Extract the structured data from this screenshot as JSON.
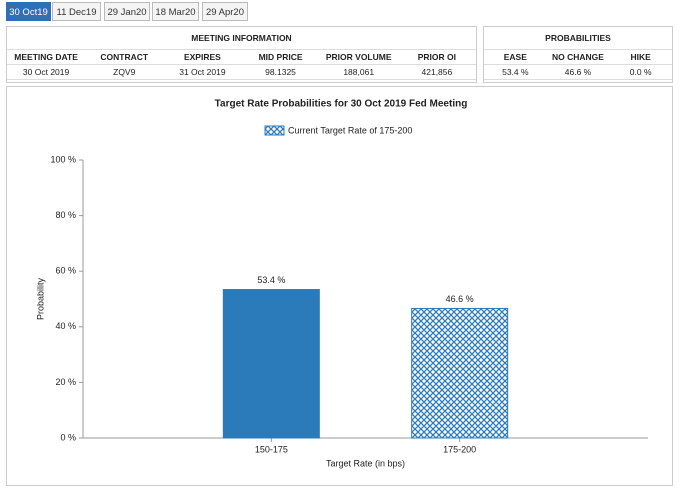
{
  "tabs": [
    "30 Oct19",
    "11 Dec19",
    "29 Jan20",
    "18 Mar20",
    "29 Apr20"
  ],
  "meeting_info": {
    "title": "MEETING INFORMATION",
    "headers": [
      "MEETING DATE",
      "CONTRACT",
      "EXPIRES",
      "MID PRICE",
      "PRIOR VOLUME",
      "PRIOR OI"
    ],
    "row": [
      "30 Oct 2019",
      "ZQV9",
      "31 Oct 2019",
      "98.1325",
      "188,061",
      "421,856"
    ]
  },
  "probabilities": {
    "title": "PROBABILITIES",
    "headers": [
      "EASE",
      "NO CHANGE",
      "HIKE"
    ],
    "row": [
      "53.4 %",
      "46.6 %",
      "0.0 %"
    ]
  },
  "chart_data": {
    "type": "bar",
    "title": "Target Rate Probabilities for 30 Oct 2019 Fed Meeting",
    "legend": "Current Target Rate of 175-200",
    "x_label": "Target Rate (in bps)",
    "y_label": "Probability",
    "categories": [
      "150-175",
      "175-200"
    ],
    "values": [
      53.4,
      46.6
    ],
    "value_labels": [
      "53.4 %",
      "46.6 %"
    ],
    "hatched": [
      false,
      true
    ],
    "color": "#2b7bba",
    "ylim": [
      0,
      100
    ],
    "yticks": [
      {
        "value": 0,
        "label": "0 %"
      },
      {
        "value": 20,
        "label": "20 %"
      },
      {
        "value": 40,
        "label": "40 %"
      },
      {
        "value": 60,
        "label": "60 %"
      },
      {
        "value": 80,
        "label": "80 %"
      },
      {
        "value": 100,
        "label": "100 %"
      }
    ]
  }
}
